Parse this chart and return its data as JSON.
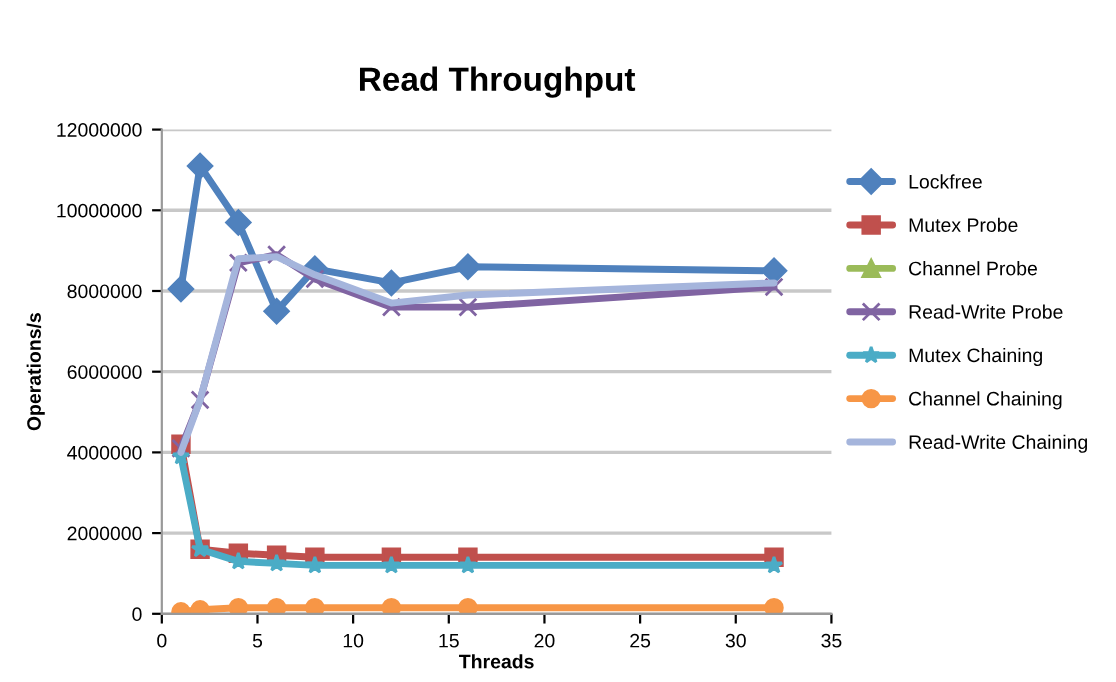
{
  "chart_data": {
    "type": "line",
    "title": "Read Throughput",
    "xlabel": "Threads",
    "ylabel": "Operations/s",
    "xlim": [
      0,
      35
    ],
    "xticks": [
      0,
      5,
      10,
      15,
      20,
      25,
      30,
      35
    ],
    "ylim": [
      0,
      12000000
    ],
    "yticks": [
      0,
      2000000,
      4000000,
      6000000,
      8000000,
      10000000,
      12000000
    ],
    "grid": "y",
    "legend": "right",
    "x": [
      1,
      2,
      4,
      6,
      8,
      12,
      16,
      32
    ],
    "series": [
      {
        "name": "Lockfree",
        "color": "#4f81bd",
        "marker": "diamond",
        "values": [
          8050000,
          11100000,
          9700000,
          7500000,
          8550000,
          8200000,
          8600000,
          8500000
        ]
      },
      {
        "name": "Mutex Probe",
        "color": "#c0504d",
        "marker": "square",
        "values": [
          4200000,
          1600000,
          1500000,
          1450000,
          1400000,
          1400000,
          1400000,
          1400000
        ]
      },
      {
        "name": "Channel Probe",
        "color": "#9bbb59",
        "marker": "triangle",
        "values": [
          null,
          null,
          null,
          null,
          null,
          null,
          null,
          null
        ]
      },
      {
        "name": "Read-Write Probe",
        "color": "#8064a2",
        "marker": "cross",
        "values": [
          4100000,
          5300000,
          8700000,
          8900000,
          8300000,
          7600000,
          7600000,
          8100000
        ]
      },
      {
        "name": "Mutex Chaining",
        "color": "#4bacc6",
        "marker": "star",
        "values": [
          3900000,
          1600000,
          1300000,
          1250000,
          1200000,
          1200000,
          1200000,
          1200000
        ]
      },
      {
        "name": "Channel Chaining",
        "color": "#f79646",
        "marker": "circle",
        "values": [
          50000,
          100000,
          150000,
          150000,
          150000,
          150000,
          150000,
          150000
        ]
      },
      {
        "name": "Read-Write Chaining",
        "color": "#a5b5dc",
        "marker": "none",
        "values": [
          4000000,
          5300000,
          8800000,
          8850000,
          8400000,
          7700000,
          7900000,
          8200000
        ]
      }
    ]
  }
}
